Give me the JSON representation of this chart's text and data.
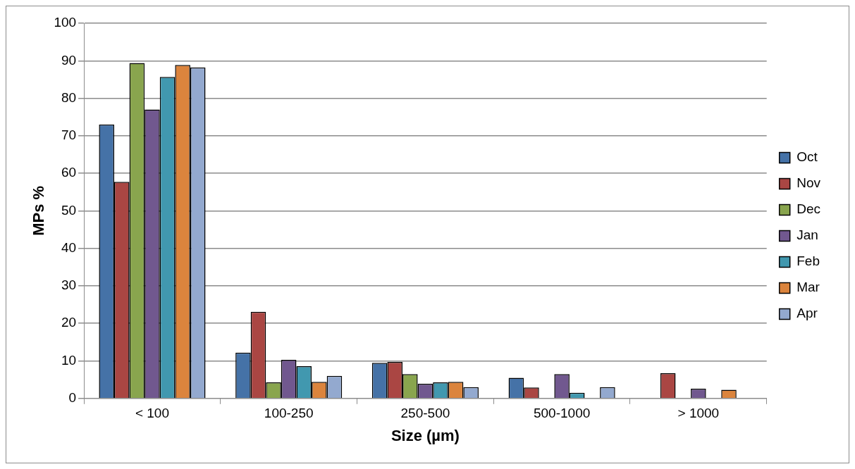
{
  "chart_data": {
    "type": "bar",
    "xlabel": "Size (µm)",
    "ylabel": "MPs %",
    "categories": [
      "< 100",
      "100-250",
      "250-500",
      "500-1000",
      "> 1000"
    ],
    "series": [
      {
        "name": "Oct",
        "color": "#4572a7",
        "values": [
          73,
          12.2,
          9.5,
          5.5,
          0
        ]
      },
      {
        "name": "Nov",
        "color": "#aa4643",
        "values": [
          57.7,
          23.1,
          9.7,
          2.9,
          6.7
        ]
      },
      {
        "name": "Dec",
        "color": "#89a54e",
        "values": [
          89.4,
          4.3,
          6.5,
          0,
          0
        ]
      },
      {
        "name": "Jan",
        "color": "#71588f",
        "values": [
          77,
          10.3,
          3.9,
          6.5,
          2.6
        ]
      },
      {
        "name": "Feb",
        "color": "#4198af",
        "values": [
          85.7,
          8.6,
          4.3,
          1.5,
          0
        ]
      },
      {
        "name": "Mar",
        "color": "#db843d",
        "values": [
          88.9,
          4.4,
          4.4,
          0,
          2.3
        ]
      },
      {
        "name": "Apr",
        "color": "#93a9cf",
        "values": [
          88.2,
          6.0,
          3.0,
          3.0,
          0
        ]
      }
    ],
    "ylim": [
      0,
      100
    ],
    "yticks": [
      0,
      10,
      20,
      30,
      40,
      50,
      60,
      70,
      80,
      90,
      100
    ],
    "grid": "y",
    "legend": "right"
  }
}
